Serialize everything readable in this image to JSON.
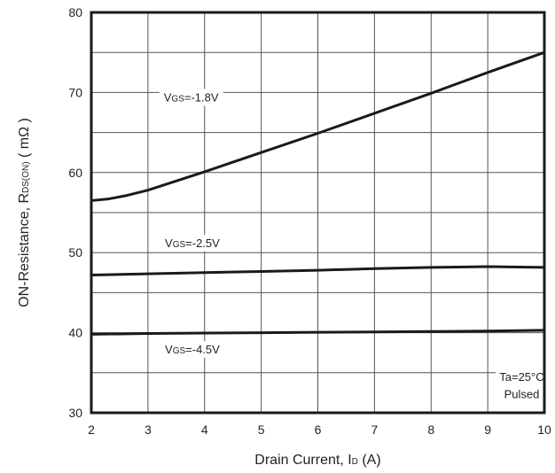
{
  "chart_data": {
    "type": "line",
    "xlabel": {
      "main": "Drain Current, I",
      "sub": "D",
      "suffix": " (A)"
    },
    "ylabel": {
      "main": "ON-Resistance, R",
      "sub": "DS(ON)",
      "suffix": " ( mΩ )"
    },
    "xlim": [
      2,
      10
    ],
    "ylim": [
      30,
      80
    ],
    "x_ticks": [
      2,
      3,
      4,
      5,
      6,
      7,
      8,
      9,
      10
    ],
    "y_ticks": [
      30,
      40,
      50,
      60,
      70,
      80
    ],
    "y_minor_gridlines": [
      35,
      45,
      55,
      65,
      75
    ],
    "grid": true,
    "series": [
      {
        "name": "VGS=-1.8V",
        "label": {
          "main": "V",
          "sub": "GS",
          "suffix": "=-1.8V"
        },
        "x": [
          2,
          2.3,
          2.6,
          3,
          4,
          5,
          6,
          7,
          8,
          9,
          10
        ],
        "y": [
          56.5,
          56.7,
          57.1,
          57.8,
          60.1,
          62.5,
          64.9,
          67.4,
          69.9,
          72.5,
          75.0
        ]
      },
      {
        "name": "VGS=-2.5V",
        "label": {
          "main": "V",
          "sub": "GS",
          "suffix": "=-2.5V"
        },
        "x": [
          2,
          3,
          4,
          5,
          6,
          7,
          8,
          9,
          10
        ],
        "y": [
          47.2,
          47.35,
          47.5,
          47.65,
          47.8,
          48.0,
          48.15,
          48.25,
          48.15
        ]
      },
      {
        "name": "VGS=-4.5V",
        "label": {
          "main": "V",
          "sub": "GS",
          "suffix": "=-4.5V"
        },
        "x": [
          2,
          3,
          4,
          5,
          6,
          7,
          8,
          9,
          10
        ],
        "y": [
          39.8,
          39.9,
          39.95,
          40.0,
          40.05,
          40.1,
          40.15,
          40.2,
          40.3
        ]
      }
    ],
    "annotations": [
      "Ta=25°C",
      "Pulsed"
    ]
  }
}
